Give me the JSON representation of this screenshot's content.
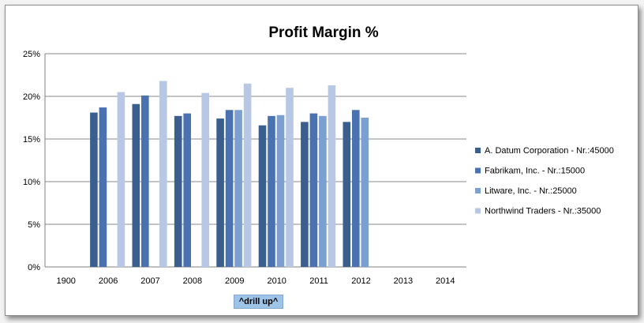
{
  "drill_up_label": "^drill up^",
  "chart_data": {
    "type": "bar",
    "title": "Profit Margin %",
    "xlabel": "",
    "ylabel": "",
    "ylim": [
      0,
      25
    ],
    "yticks": [
      "0%",
      "5%",
      "10%",
      "15%",
      "20%",
      "25%"
    ],
    "ytick_values": [
      0,
      5,
      10,
      15,
      20,
      25
    ],
    "grid": true,
    "legend_position": "right",
    "categories": [
      "1900",
      "2006",
      "2007",
      "2008",
      "2009",
      "2010",
      "2011",
      "2012",
      "2013",
      "2014"
    ],
    "series": [
      {
        "name": "A. Datum Corporation - Nr.:45000",
        "color": "#3a5f8f",
        "values": [
          null,
          18.1,
          19.1,
          17.7,
          17.4,
          16.6,
          17.0,
          17.0,
          null,
          null
        ]
      },
      {
        "name": "Fabrikam, Inc. - Nr.:15000",
        "color": "#4a72b0",
        "values": [
          null,
          18.7,
          20.1,
          18.0,
          18.4,
          17.7,
          18.0,
          18.4,
          null,
          null
        ]
      },
      {
        "name": "Litware, Inc. - Nr.:25000",
        "color": "#7b9fd0",
        "values": [
          null,
          null,
          null,
          null,
          18.4,
          17.8,
          17.7,
          17.5,
          null,
          null
        ]
      },
      {
        "name": "Northwind Traders - Nr.:35000",
        "color": "#b8c8e4",
        "values": [
          null,
          20.5,
          21.8,
          20.4,
          21.5,
          21.0,
          21.3,
          null,
          null,
          null
        ]
      }
    ]
  }
}
